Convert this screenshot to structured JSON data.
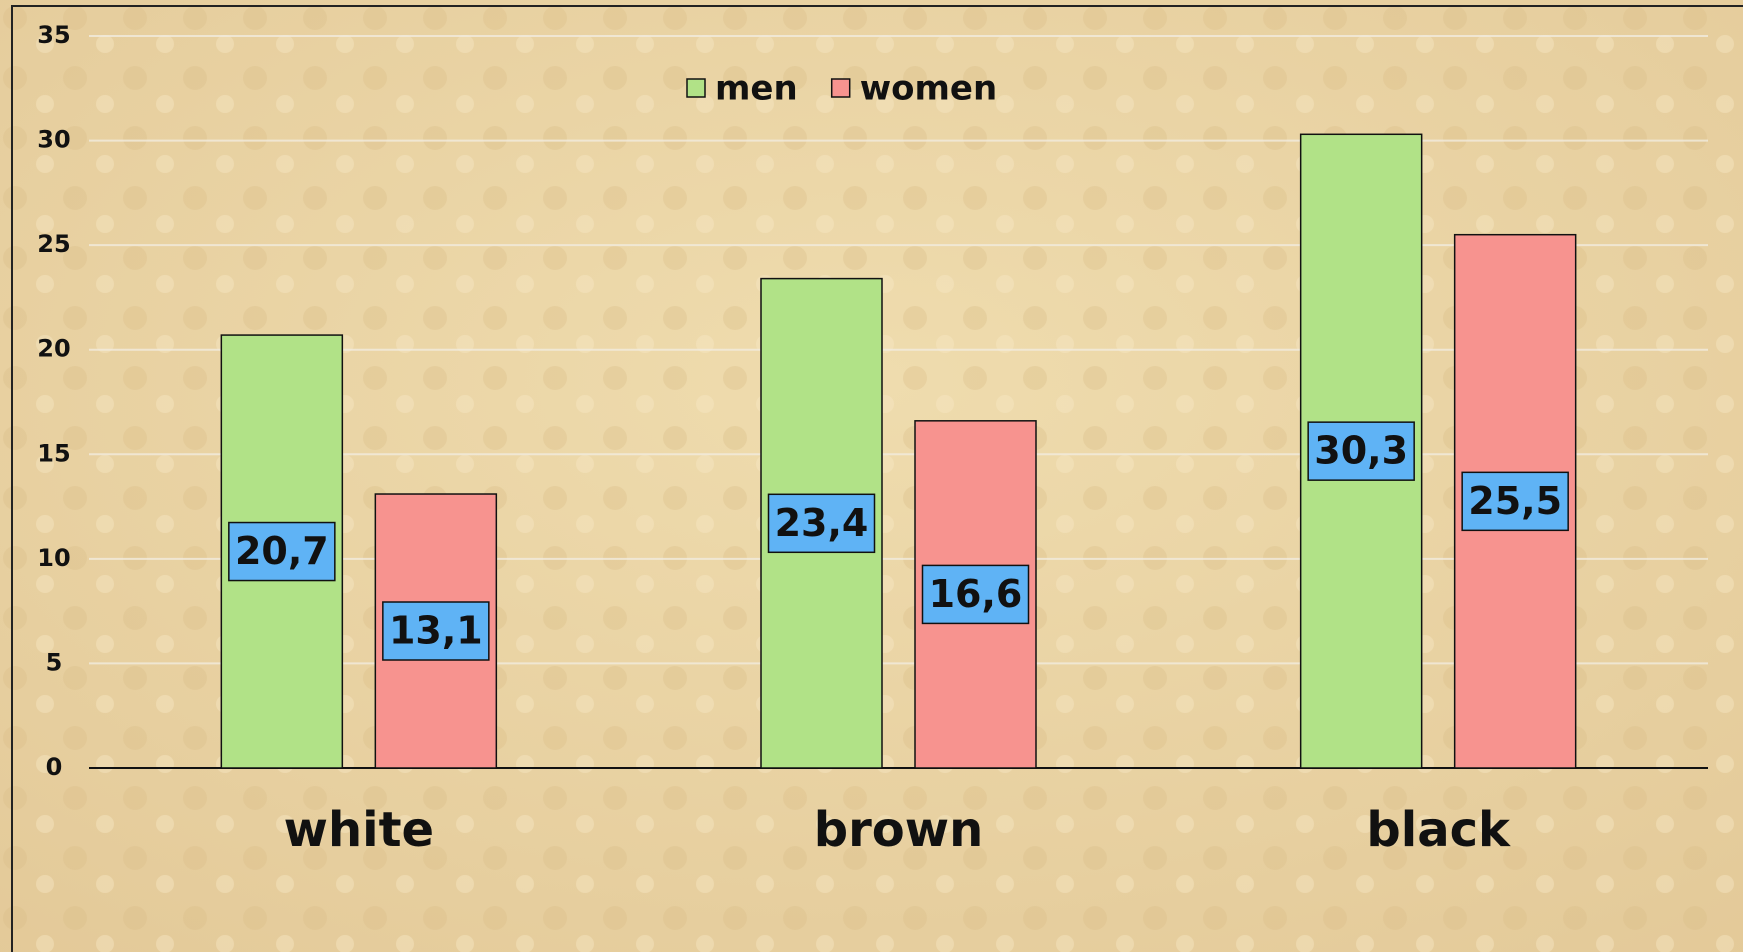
{
  "chart_data": {
    "type": "bar",
    "categories": [
      "white",
      "brown",
      "black"
    ],
    "series": [
      {
        "name": "men",
        "color": "#b1e287",
        "values": [
          20.7,
          23.4,
          30.3
        ],
        "value_labels": [
          "20,7",
          "23,4",
          "30,3"
        ]
      },
      {
        "name": "women",
        "color": "#f7938f",
        "values": [
          13.1,
          16.6,
          25.5
        ],
        "value_labels": [
          "13,1",
          "16,6",
          "25,5"
        ]
      }
    ],
    "ylim": [
      0,
      35
    ],
    "yticks": [
      0,
      5,
      10,
      15,
      20,
      25,
      30,
      35
    ],
    "grid": true,
    "legend": "top"
  }
}
